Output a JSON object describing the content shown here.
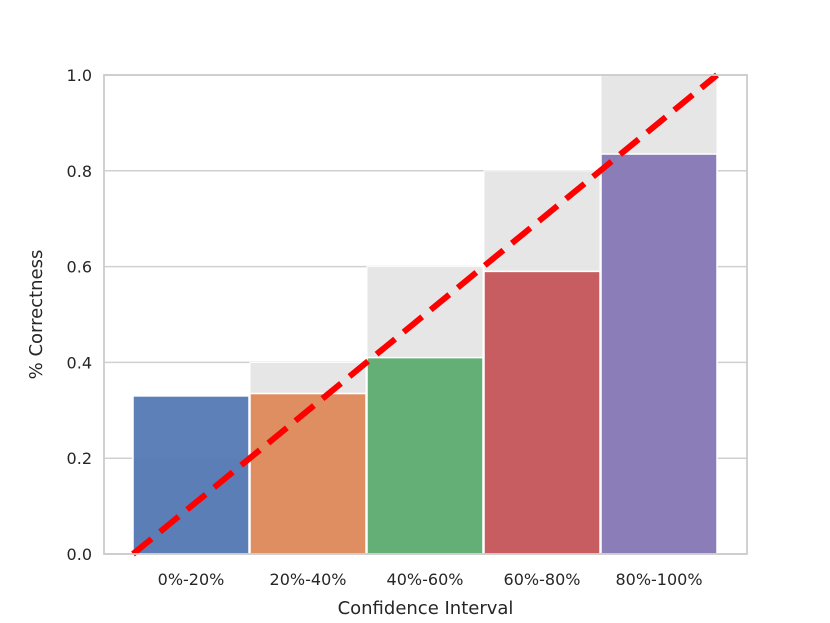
{
  "chart_data": {
    "type": "bar",
    "title": "",
    "xlabel": "Confidence Interval",
    "ylabel": "% Correctness",
    "categories": [
      "0%-20%",
      "20%-40%",
      "40%-60%",
      "60%-80%",
      "80%-100%"
    ],
    "values": [
      0.33,
      0.335,
      0.41,
      0.59,
      0.835
    ],
    "ideal_values": [
      0.2,
      0.4,
      0.6,
      0.8,
      1.0
    ],
    "ylim": [
      0.0,
      1.0
    ],
    "yticks": [
      "0.0",
      "0.2",
      "0.4",
      "0.6",
      "0.8",
      "1.0"
    ],
    "grid": "horizontal",
    "diagonal": {
      "style": "dashed",
      "from": [
        0.0,
        0.0
      ],
      "to": [
        1.0,
        1.0
      ]
    },
    "colors": {
      "bars": [
        "#4c72b0",
        "#dd8452",
        "#55a868",
        "#c44e52",
        "#8172b3"
      ],
      "ideal_fill": "#e5e5e5",
      "diagonal": "#ff0000",
      "grid": "#d0d0d0",
      "spine": "#cccccc"
    }
  }
}
